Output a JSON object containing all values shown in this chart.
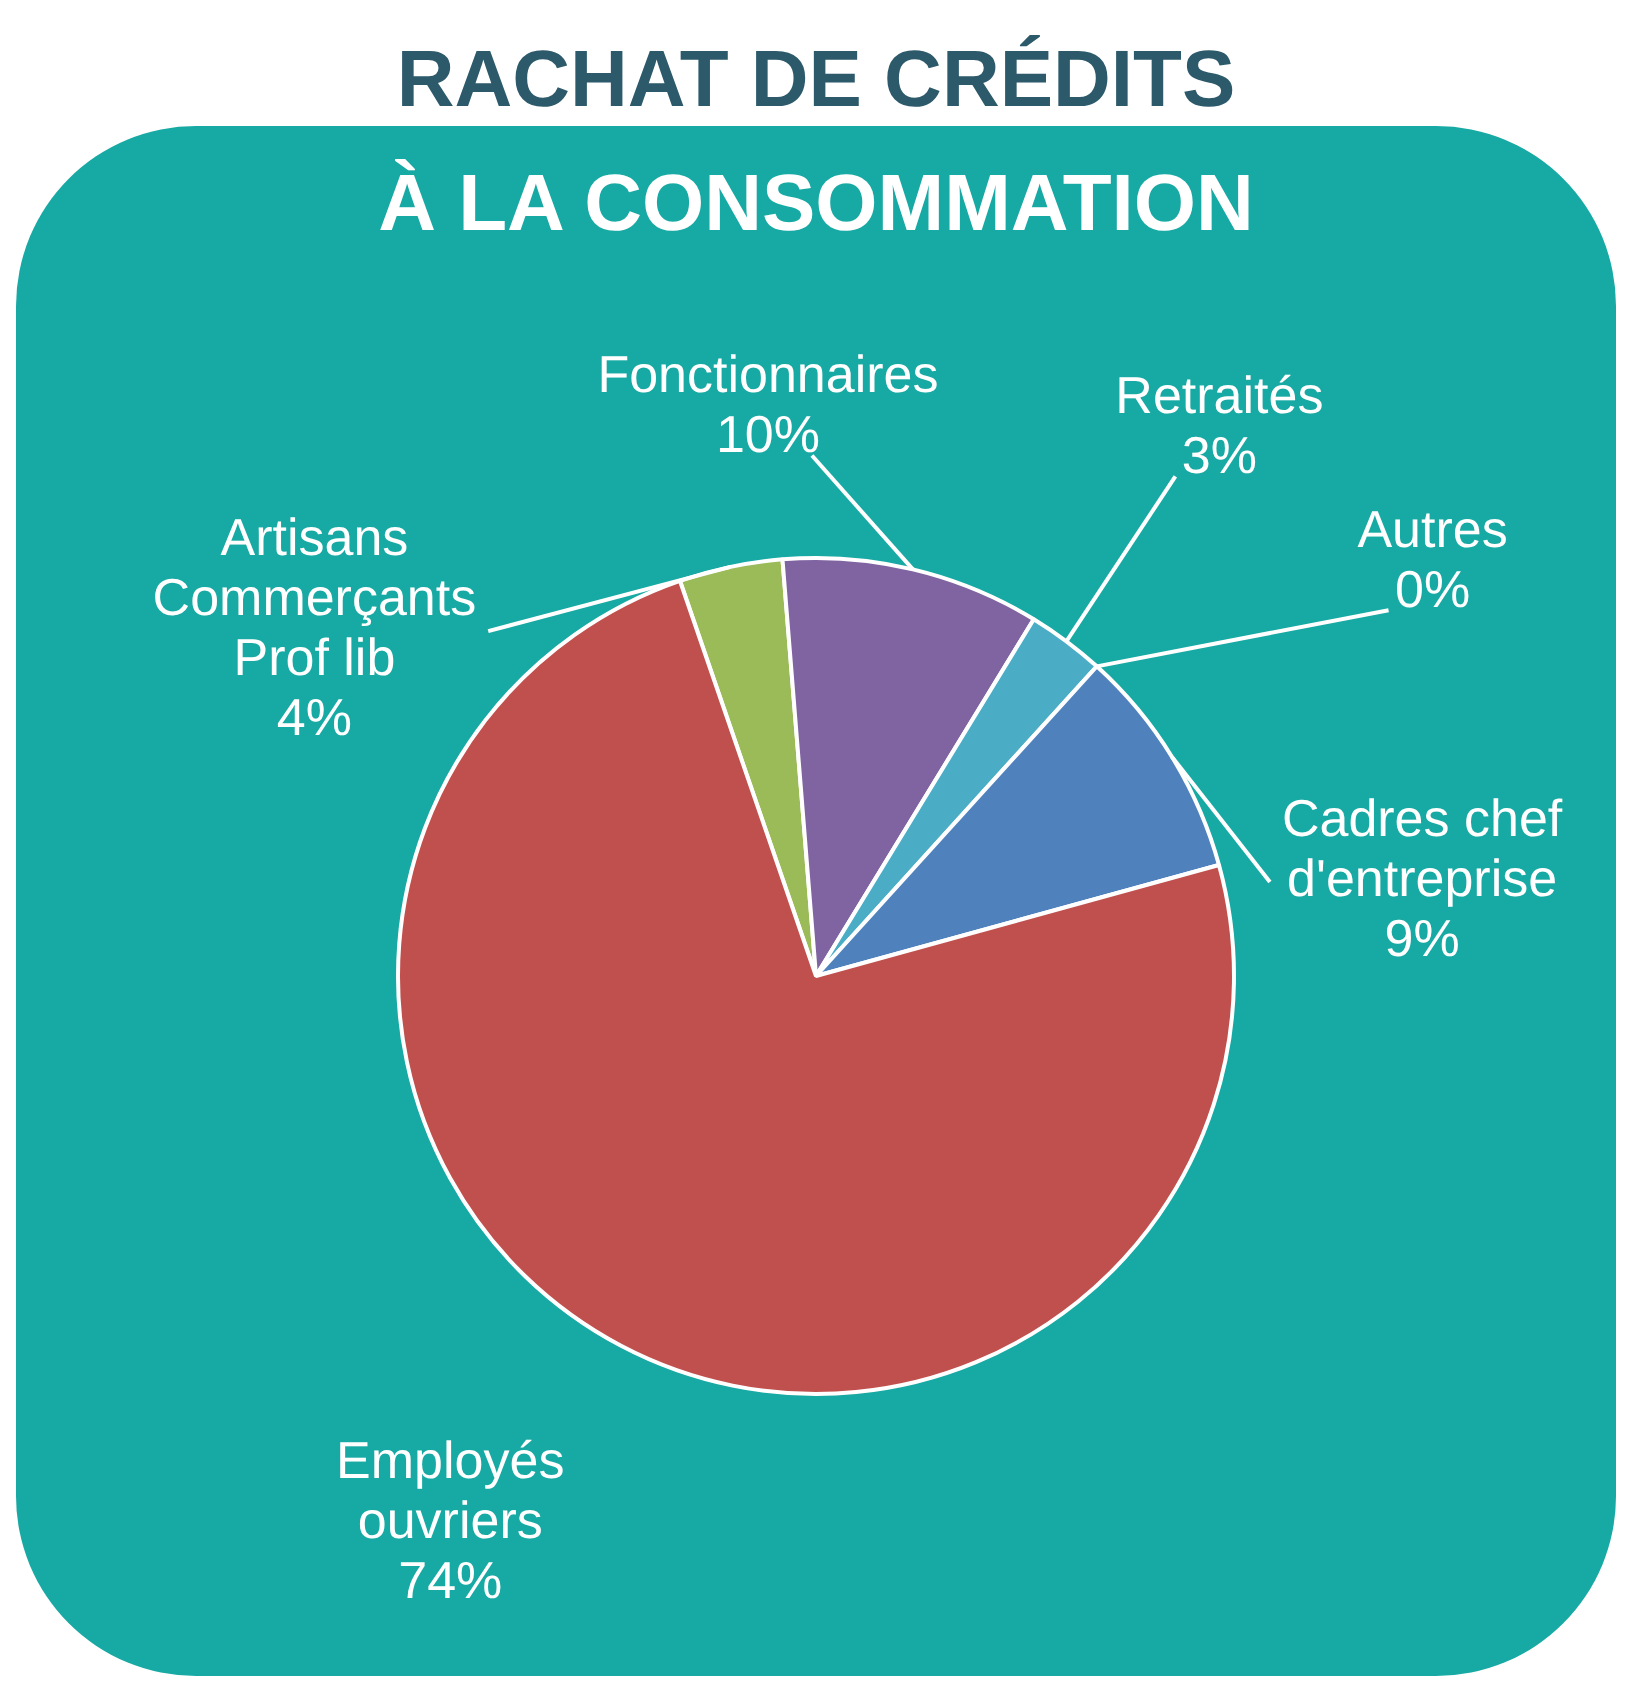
{
  "chart_data": {
    "type": "pie",
    "title": "RACHAT DE CRÉDITS",
    "subtitle": "À LA CONSOMMATION",
    "categories": [
      "Artisans\nCommerçants\nProf lib",
      "Fonctionnaires",
      "Retraités",
      "Autres",
      "Cadres chef\nd'entreprise",
      "Employés\nouvriers"
    ],
    "values": [
      4,
      10,
      3,
      0,
      9,
      74
    ],
    "colors": [
      "#9bbb59",
      "#8064a2",
      "#4bacc6",
      "#f79646",
      "#4f81bd",
      "#c0504d"
    ],
    "value_labels": [
      "4%",
      "10%",
      "3%",
      "0%",
      "9%",
      "74%"
    ],
    "legend": false
  }
}
